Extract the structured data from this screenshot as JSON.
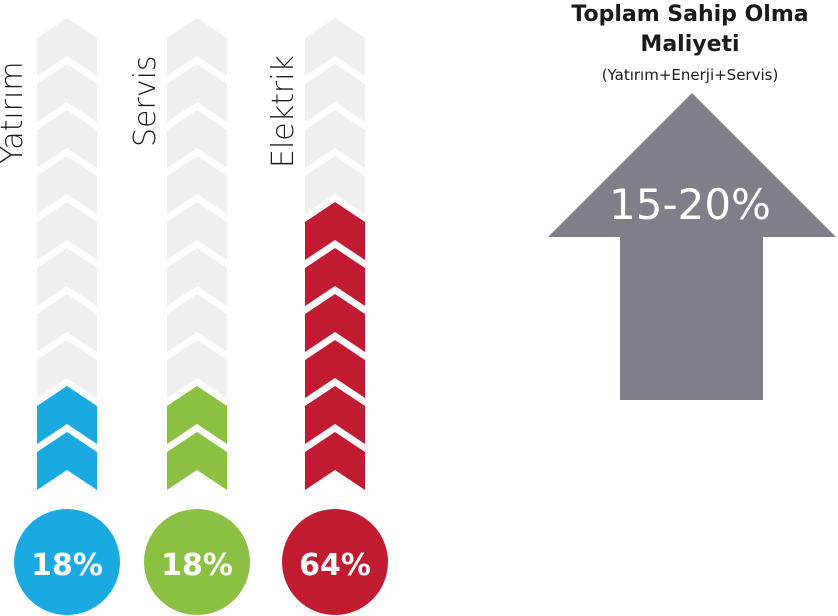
{
  "chart_data": {
    "type": "bar",
    "style": "chevron-stack infographic",
    "categories": [
      "Yatırım",
      "Servis",
      "Elektrik"
    ],
    "values": [
      18,
      18,
      64
    ],
    "value_labels": [
      "18%",
      "18%",
      "64%"
    ],
    "filled_chevrons": [
      2,
      2,
      6
    ],
    "total_chevrons": 10,
    "colors": [
      "#1aa9e1",
      "#8cc043",
      "#c01b30"
    ],
    "empty_color": "#efefef"
  },
  "summary": {
    "title_line1": "Toplam Sahip Olma",
    "title_line2": "Maliyeti",
    "subtitle": "(Yatırım+Enerji+Servis)",
    "value": "15-20%",
    "arrow_color": "#7e8089",
    "icon": "up-arrow-icon"
  }
}
